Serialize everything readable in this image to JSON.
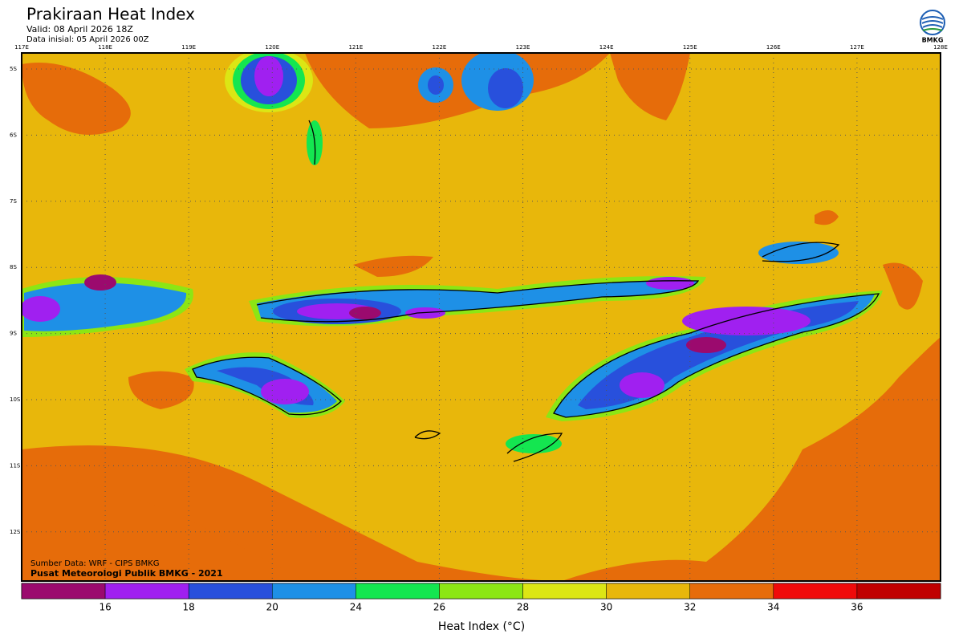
{
  "header": {
    "title": "Prakiraan Heat Index",
    "valid": "Valid: 08 April 2026 18Z",
    "init": "Data inisial: 05 April 2026 00Z",
    "logo": "BMKG"
  },
  "map": {
    "lon_labels": [
      "117E",
      "118E",
      "119E",
      "120E",
      "121E",
      "122E",
      "123E",
      "124E",
      "125E",
      "126E",
      "127E",
      "128E"
    ],
    "lat_labels": [
      "5S",
      "6S",
      "7S",
      "8S",
      "9S",
      "10S",
      "11S",
      "12S"
    ],
    "source": "Sumber Data: WRF - CIPS BMKG",
    "credit": "Pusat Meteorologi Publik BMKG - 2021"
  },
  "legend": {
    "colors": [
      "#9b0a6e",
      "#a020f0",
      "#2850dc",
      "#1e90e6",
      "#14e650",
      "#8ce614",
      "#dce614",
      "#e8b70b",
      "#e66c0a",
      "#f00a0a",
      "#c00000"
    ],
    "ticks": [
      16,
      18,
      20,
      24,
      26,
      28,
      30,
      32,
      34,
      36
    ],
    "label": "Heat Index (°C)"
  }
}
